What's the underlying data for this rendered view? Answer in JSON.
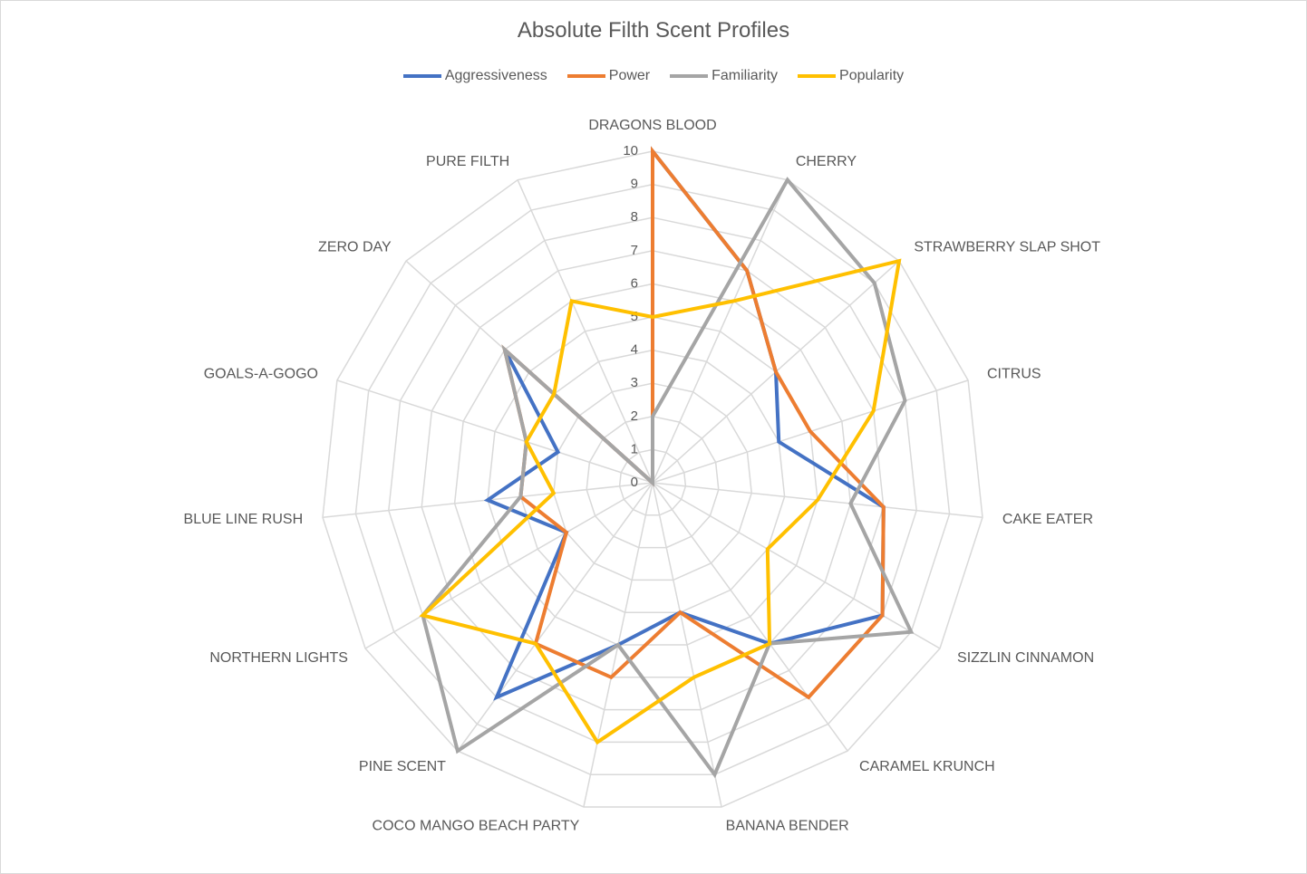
{
  "chart_data": {
    "type": "radar",
    "title": "Absolute Filth Scent Profiles",
    "categories": [
      "DRAGONS BLOOD",
      "CHERRY",
      "STRAWBERRY SLAP SHOT",
      "CITRUS",
      "CAKE EATER",
      "SIZZLIN CINNAMON",
      "CARAMEL KRUNCH",
      "BANANA BENDER",
      "COCO MANGO BEACH PARTY",
      "PINE SCENT",
      "NORTHERN LIGHTS",
      "BLUE LINE RUSH",
      "GOALS-A-GOGO",
      "ZERO DAY",
      "PURE FILTH"
    ],
    "rlim": [
      0,
      10
    ],
    "ticks": [
      "0",
      "1",
      "2",
      "3",
      "4",
      "5",
      "6",
      "7",
      "8",
      "9",
      "10"
    ],
    "grid": true,
    "legend_position": "top",
    "series": [
      {
        "name": "Aggressiveness",
        "color": "#4472C4",
        "values": [
          10,
          7,
          5,
          4,
          7,
          8,
          6,
          4,
          5,
          8,
          3,
          5,
          3,
          6,
          0
        ]
      },
      {
        "name": "Power",
        "color": "#ED7D31",
        "values": [
          10,
          7,
          5,
          5,
          7,
          8,
          8,
          4,
          6,
          6,
          3,
          4,
          4,
          6,
          0
        ]
      },
      {
        "name": "Familiarity",
        "color": "#A5A5A5",
        "values": [
          2,
          10,
          9,
          8,
          6,
          9,
          6,
          9,
          5,
          10,
          8,
          4,
          4,
          6,
          0
        ]
      },
      {
        "name": "Popularity",
        "color": "#FFC000",
        "values": [
          5,
          6,
          10,
          7,
          5,
          4,
          6,
          6,
          8,
          6,
          8,
          3,
          4,
          4,
          6
        ]
      }
    ]
  }
}
